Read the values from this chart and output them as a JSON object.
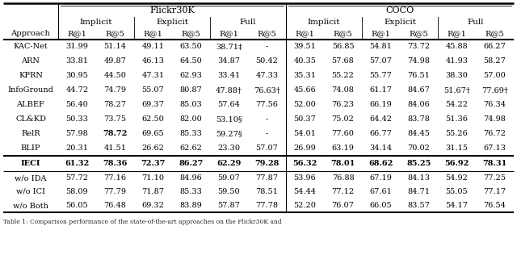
{
  "rows": [
    [
      "KAC-Net",
      "31.99",
      "51.14",
      "49.11",
      "63.50",
      "38.71‡",
      "-",
      "39.51",
      "56.85",
      "54.81",
      "73.72",
      "45.88",
      "66.27"
    ],
    [
      "ARN",
      "33.81",
      "49.87",
      "46.13",
      "64.50",
      "34.87",
      "50.42",
      "40.35",
      "57.68",
      "57.07",
      "74.98",
      "41.93",
      "58.27"
    ],
    [
      "KPRN",
      "30.95",
      "44.50",
      "47.31",
      "62.93",
      "33.41",
      "47.33",
      "35.31",
      "55.22",
      "55.77",
      "76.51",
      "38.30",
      "57.00"
    ],
    [
      "InfoGround",
      "44.72",
      "74.79",
      "55.07",
      "80.87",
      "47.88†",
      "76.63†",
      "45.66",
      "74.08",
      "61.17",
      "84.67",
      "51.67†",
      "77.69†"
    ],
    [
      "ALBEF",
      "56.40",
      "78.27",
      "69.37",
      "85.03",
      "57.64",
      "77.56",
      "52.00",
      "76.23",
      "66.19",
      "84.06",
      "54.22",
      "76.34"
    ],
    [
      "CL&KD",
      "50.33",
      "73.75",
      "62.50",
      "82.00",
      "53.10§",
      "-",
      "50.37",
      "75.02",
      "64.42",
      "83.78",
      "51.36",
      "74.98"
    ],
    [
      "RelR",
      "57.98",
      "78.72",
      "69.65",
      "85.33",
      "59.27§",
      "-",
      "54.01",
      "77.60",
      "66.77",
      "84.45",
      "55.26",
      "76.72"
    ],
    [
      "BLIP",
      "20.31",
      "41.51",
      "26.62",
      "62.62",
      "23.30",
      "57.07",
      "26.99",
      "63.19",
      "34.14",
      "70.02",
      "31.15",
      "67.13"
    ]
  ],
  "bold_row": [
    "IECI",
    "61.32",
    "78.36",
    "72.37",
    "86.27",
    "62.29",
    "79.28",
    "56.32",
    "78.01",
    "68.62",
    "85.25",
    "56.92",
    "78.31"
  ],
  "ablation_rows": [
    [
      "w/o IDA",
      "57.72",
      "77.16",
      "71.10",
      "84.96",
      "59.07",
      "77.87",
      "53.96",
      "76.88",
      "67.19",
      "84.13",
      "54.92",
      "77.25"
    ],
    [
      "w/o ICI",
      "58.09",
      "77.79",
      "71.87",
      "85.33",
      "59.50",
      "78.51",
      "54.44",
      "77.12",
      "67.61",
      "84.71",
      "55.05",
      "77.17"
    ],
    [
      "w/o Both",
      "56.05",
      "76.48",
      "69.32",
      "83.89",
      "57.87",
      "77.78",
      "52.20",
      "76.07",
      "66.05",
      "83.57",
      "54.17",
      "76.54"
    ]
  ],
  "caption": "Table 1: Comparison performance of the state-of-the-art approaches on the Flickr30K and",
  "figsize": [
    6.4,
    3.32
  ],
  "dpi": 100
}
